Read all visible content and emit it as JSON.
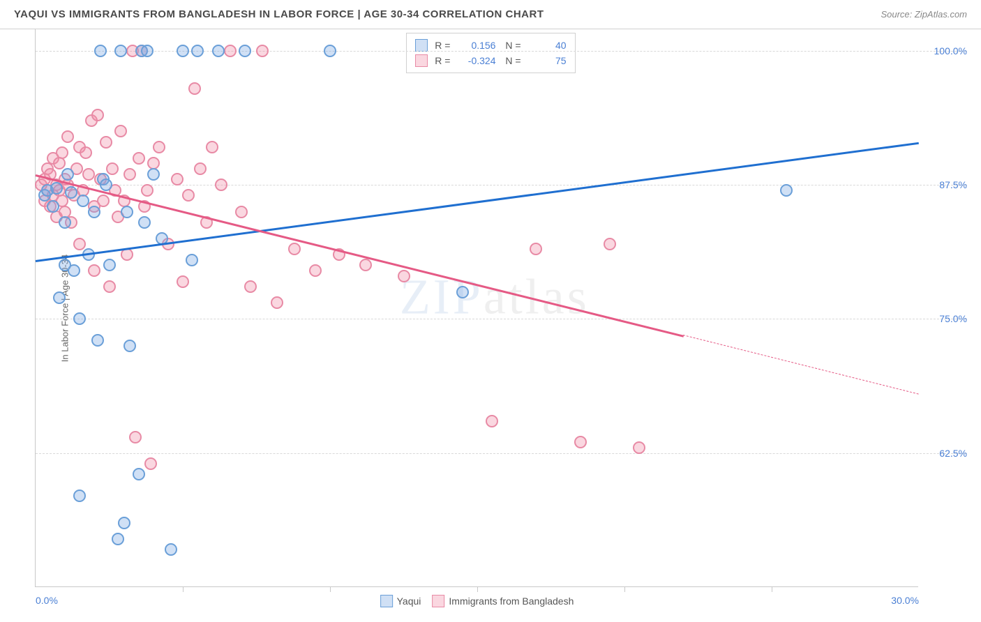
{
  "title": "YAQUI VS IMMIGRANTS FROM BANGLADESH IN LABOR FORCE | AGE 30-34 CORRELATION CHART",
  "source": "Source: ZipAtlas.com",
  "watermark": "ZIPatlas",
  "chart": {
    "type": "scatter",
    "xlim": [
      0,
      30
    ],
    "ylim": [
      50,
      102
    ],
    "y_gridlines": [
      62.5,
      75.0,
      87.5,
      100.0
    ],
    "x_ticks_minor": [
      5,
      10,
      15,
      20,
      25
    ],
    "x_tick_labels": [
      {
        "pos": 0,
        "label": "0.0%",
        "align": "left"
      },
      {
        "pos": 30,
        "label": "30.0%",
        "align": "right"
      }
    ],
    "y_tick_labels": [
      {
        "pos": 62.5,
        "label": "62.5%"
      },
      {
        "pos": 75.0,
        "label": "75.0%"
      },
      {
        "pos": 87.5,
        "label": "87.5%"
      },
      {
        "pos": 100.0,
        "label": "100.0%"
      }
    ],
    "ylabel": "In Labor Force | Age 30-34",
    "background_color": "#ffffff",
    "grid_color": "#d8d8d8",
    "axis_color": "#c8c8c8",
    "marker_radius": 9,
    "marker_opacity": 0.35,
    "line_width": 3
  },
  "series": {
    "yaqui": {
      "label": "Yaqui",
      "color_fill": "rgba(120,165,225,0.35)",
      "color_stroke": "#6a9fd8",
      "line_color": "#1f6fd0",
      "R": "0.156",
      "N": "40",
      "trend": {
        "x1": 0,
        "y1": 80.5,
        "x2": 30,
        "y2": 91.5
      },
      "points": [
        [
          0.3,
          86.5
        ],
        [
          0.4,
          87.0
        ],
        [
          0.6,
          85.5
        ],
        [
          0.7,
          87.2
        ],
        [
          0.8,
          77.0
        ],
        [
          1.0,
          84.0
        ],
        [
          1.0,
          80.0
        ],
        [
          1.1,
          88.5
        ],
        [
          1.2,
          86.8
        ],
        [
          1.3,
          79.5
        ],
        [
          1.5,
          75.0
        ],
        [
          1.5,
          58.5
        ],
        [
          1.6,
          86.0
        ],
        [
          1.8,
          81.0
        ],
        [
          2.0,
          85.0
        ],
        [
          2.1,
          73.0
        ],
        [
          2.2,
          100.0
        ],
        [
          2.3,
          88.0
        ],
        [
          2.4,
          87.5
        ],
        [
          2.5,
          80.0
        ],
        [
          2.8,
          54.5
        ],
        [
          2.9,
          100.0
        ],
        [
          3.0,
          56.0
        ],
        [
          3.1,
          85.0
        ],
        [
          3.2,
          72.5
        ],
        [
          3.5,
          60.5
        ],
        [
          3.6,
          100.0
        ],
        [
          3.7,
          84.0
        ],
        [
          3.8,
          100.0
        ],
        [
          4.0,
          88.5
        ],
        [
          4.3,
          82.5
        ],
        [
          4.6,
          53.5
        ],
        [
          5.0,
          100.0
        ],
        [
          5.3,
          80.5
        ],
        [
          5.5,
          100.0
        ],
        [
          6.2,
          100.0
        ],
        [
          7.1,
          100.0
        ],
        [
          10.0,
          100.0
        ],
        [
          14.5,
          77.5
        ],
        [
          25.5,
          87.0
        ]
      ]
    },
    "bangladesh": {
      "label": "Immigrants from Bangladesh",
      "color_fill": "rgba(240,140,165,0.35)",
      "color_stroke": "#e88aa5",
      "line_color": "#e55a85",
      "R": "-0.324",
      "N": "75",
      "trend_solid": {
        "x1": 0,
        "y1": 88.5,
        "x2": 22,
        "y2": 73.5
      },
      "trend_dash": {
        "x1": 22,
        "y1": 73.5,
        "x2": 30,
        "y2": 68.0
      },
      "points": [
        [
          0.2,
          87.5
        ],
        [
          0.3,
          88.0
        ],
        [
          0.3,
          86.0
        ],
        [
          0.4,
          87.0
        ],
        [
          0.4,
          89.0
        ],
        [
          0.5,
          85.5
        ],
        [
          0.5,
          88.5
        ],
        [
          0.6,
          90.0
        ],
        [
          0.6,
          86.5
        ],
        [
          0.7,
          87.5
        ],
        [
          0.7,
          84.5
        ],
        [
          0.8,
          89.5
        ],
        [
          0.8,
          87.0
        ],
        [
          0.9,
          86.0
        ],
        [
          0.9,
          90.5
        ],
        [
          1.0,
          88.0
        ],
        [
          1.0,
          85.0
        ],
        [
          1.1,
          92.0
        ],
        [
          1.1,
          87.5
        ],
        [
          1.2,
          84.0
        ],
        [
          1.3,
          86.5
        ],
        [
          1.4,
          89.0
        ],
        [
          1.5,
          91.0
        ],
        [
          1.5,
          82.0
        ],
        [
          1.6,
          87.0
        ],
        [
          1.7,
          90.5
        ],
        [
          1.8,
          88.5
        ],
        [
          1.9,
          93.5
        ],
        [
          2.0,
          79.5
        ],
        [
          2.0,
          85.5
        ],
        [
          2.1,
          94.0
        ],
        [
          2.2,
          88.0
        ],
        [
          2.3,
          86.0
        ],
        [
          2.4,
          91.5
        ],
        [
          2.5,
          78.0
        ],
        [
          2.6,
          89.0
        ],
        [
          2.7,
          87.0
        ],
        [
          2.8,
          84.5
        ],
        [
          2.9,
          92.5
        ],
        [
          3.0,
          86.0
        ],
        [
          3.1,
          81.0
        ],
        [
          3.2,
          88.5
        ],
        [
          3.3,
          100.0
        ],
        [
          3.4,
          64.0
        ],
        [
          3.5,
          90.0
        ],
        [
          3.6,
          100.0
        ],
        [
          3.7,
          85.5
        ],
        [
          3.8,
          87.0
        ],
        [
          3.9,
          61.5
        ],
        [
          4.0,
          89.5
        ],
        [
          4.2,
          91.0
        ],
        [
          4.5,
          82.0
        ],
        [
          4.8,
          88.0
        ],
        [
          5.0,
          78.5
        ],
        [
          5.2,
          86.5
        ],
        [
          5.4,
          96.5
        ],
        [
          5.6,
          89.0
        ],
        [
          5.8,
          84.0
        ],
        [
          6.0,
          91.0
        ],
        [
          6.3,
          87.5
        ],
        [
          6.6,
          100.0
        ],
        [
          7.0,
          85.0
        ],
        [
          7.3,
          78.0
        ],
        [
          7.7,
          100.0
        ],
        [
          8.2,
          76.5
        ],
        [
          8.8,
          81.5
        ],
        [
          9.5,
          79.5
        ],
        [
          10.3,
          81.0
        ],
        [
          11.2,
          80.0
        ],
        [
          12.5,
          79.0
        ],
        [
          15.5,
          65.5
        ],
        [
          17.0,
          81.5
        ],
        [
          18.5,
          63.5
        ],
        [
          19.5,
          82.0
        ],
        [
          20.5,
          63.0
        ]
      ]
    }
  }
}
